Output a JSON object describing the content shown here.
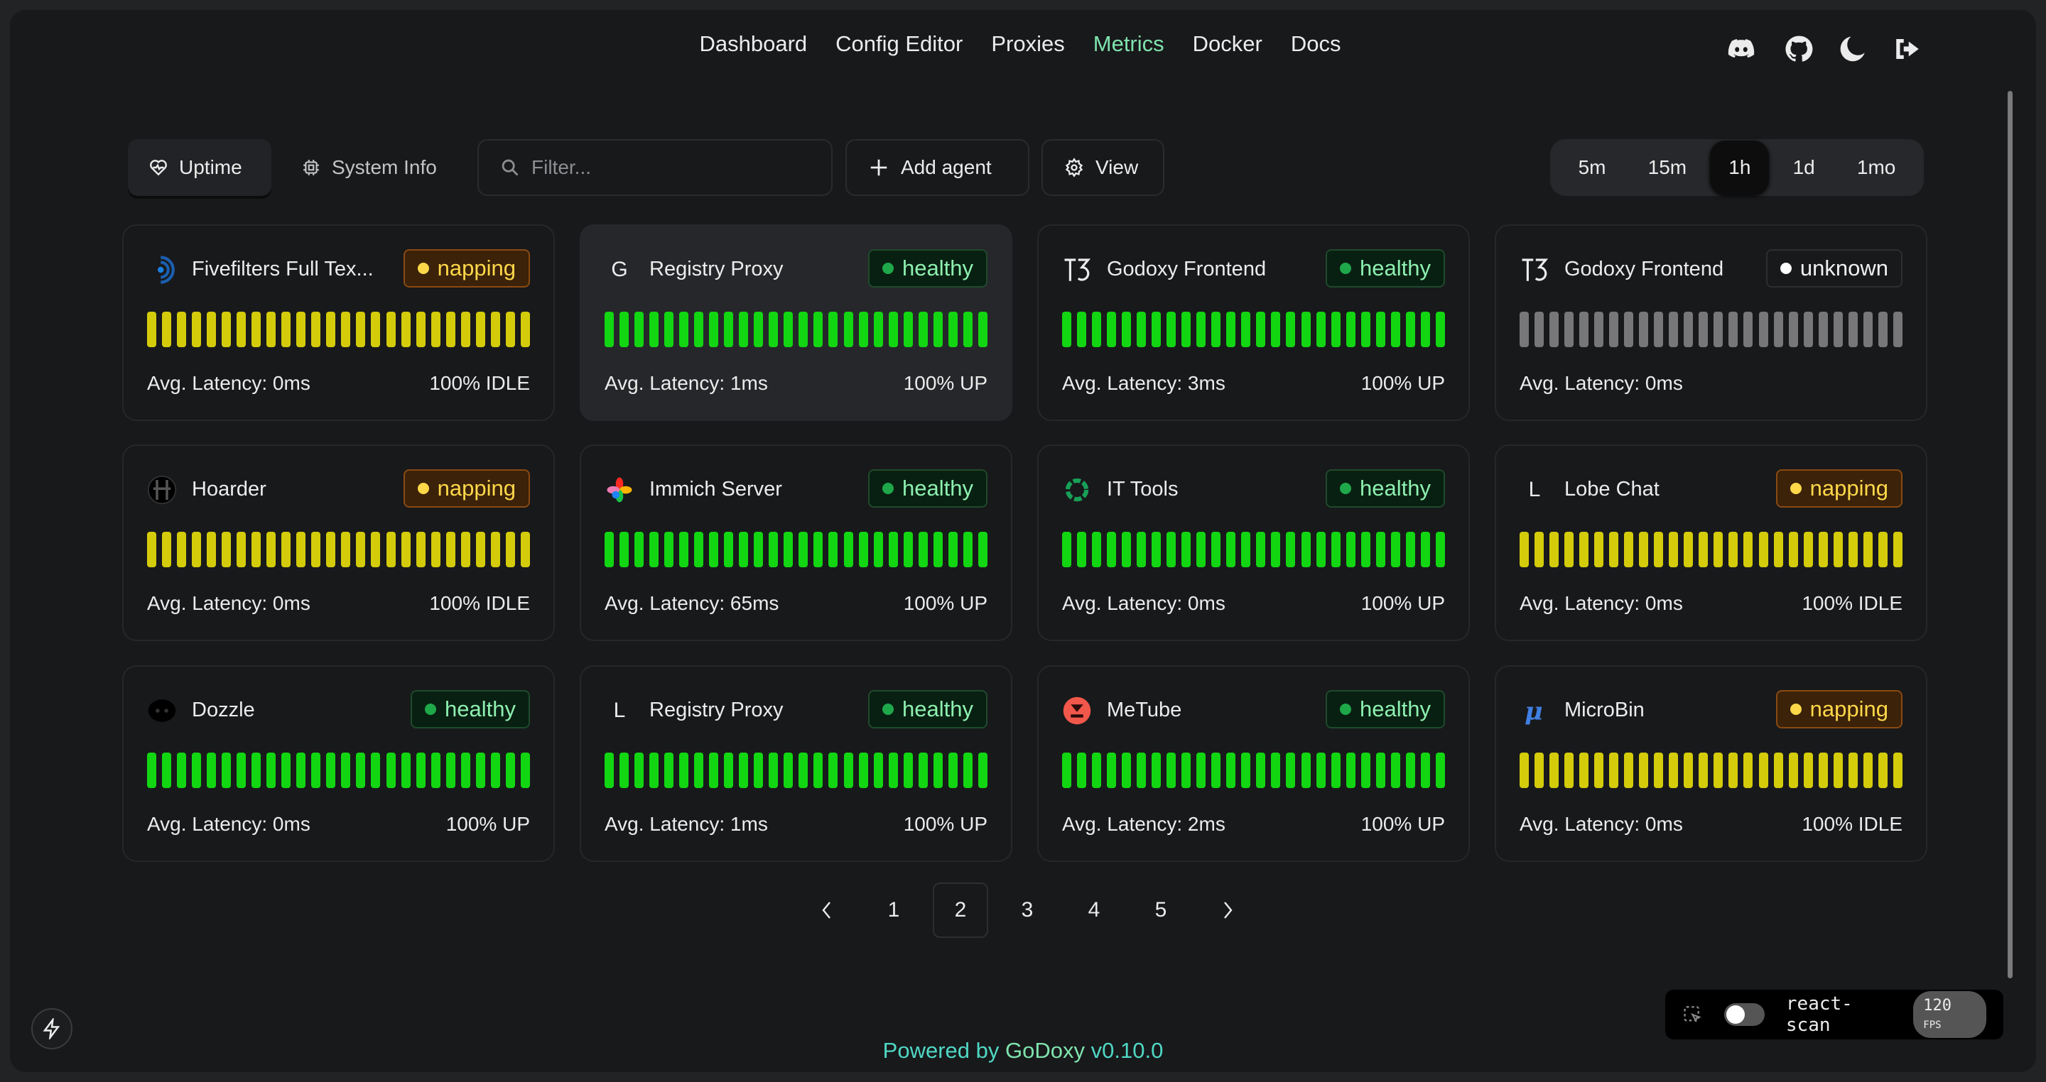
{
  "nav": {
    "items": [
      "Dashboard",
      "Config Editor",
      "Proxies",
      "Metrics",
      "Docker",
      "Docs"
    ],
    "active": "Metrics",
    "icons": [
      "discord-icon",
      "github-icon",
      "moon-icon",
      "logout-icon"
    ]
  },
  "toolbar": {
    "tab_uptime": "Uptime",
    "tab_system_info": "System Info",
    "filter_placeholder": "Filter...",
    "add_agent": "Add agent",
    "view": "View",
    "ranges": [
      "5m",
      "15m",
      "1h",
      "1d",
      "1mo"
    ],
    "selected_range": "1h"
  },
  "status_colors": {
    "napping": {
      "bar": "#d4cc0a",
      "badge_bg": "#3b2208",
      "badge_border": "#8a4a12",
      "text": "#ffd84a",
      "dot": "#ffd84a"
    },
    "healthy": {
      "bar": "#12d612",
      "badge_bg": "#082012",
      "badge_border": "#1f4a2c",
      "text": "#8ef0b0",
      "dot": "#1fa84a"
    },
    "unknown": {
      "bar": "#77777a",
      "badge_bg": "#18191b",
      "badge_border": "#2d2e31",
      "text": "#f0f0f0",
      "dot": "#ffffff"
    }
  },
  "cards": [
    {
      "name": "Fivefilters Full Tex...",
      "icon": "fivefilters-icon",
      "status": "napping",
      "latency": "Avg. Latency: 0ms",
      "uptime": "100% IDLE"
    },
    {
      "name": "Registry Proxy",
      "icon": "letter-icon",
      "letter": "G",
      "status": "healthy",
      "latency": "Avg. Latency: 1ms",
      "uptime": "100% UP"
    },
    {
      "name": "Godoxy Frontend",
      "icon": "t3-icon",
      "status": "healthy",
      "latency": "Avg. Latency: 3ms",
      "uptime": "100% UP"
    },
    {
      "name": "Godoxy Frontend",
      "icon": "t3-icon",
      "status": "unknown",
      "latency": "Avg. Latency: 0ms",
      "uptime": ""
    },
    {
      "name": "Hoarder",
      "icon": "hoarder-icon",
      "status": "napping",
      "latency": "Avg. Latency: 0ms",
      "uptime": "100% IDLE"
    },
    {
      "name": "Immich Server",
      "icon": "immich-icon",
      "status": "healthy",
      "latency": "Avg. Latency: 65ms",
      "uptime": "100% UP"
    },
    {
      "name": "IT Tools",
      "icon": "it-tools-icon",
      "status": "healthy",
      "latency": "Avg. Latency: 0ms",
      "uptime": "100% UP"
    },
    {
      "name": "Lobe Chat",
      "icon": "letter-icon",
      "letter": "L",
      "status": "napping",
      "latency": "Avg. Latency: 0ms",
      "uptime": "100% IDLE"
    },
    {
      "name": "Dozzle",
      "icon": "dozzle-icon",
      "status": "healthy",
      "latency": "Avg. Latency: 0ms",
      "uptime": "100% UP"
    },
    {
      "name": "Registry Proxy",
      "icon": "letter-icon",
      "letter": "L",
      "status": "healthy",
      "latency": "Avg. Latency: 1ms",
      "uptime": "100% UP"
    },
    {
      "name": "MeTube",
      "icon": "metube-icon",
      "status": "healthy",
      "latency": "Avg. Latency: 2ms",
      "uptime": "100% UP"
    },
    {
      "name": "MicroBin",
      "icon": "microbin-icon",
      "status": "napping",
      "latency": "Avg. Latency: 0ms",
      "uptime": "100% IDLE"
    }
  ],
  "pagination": {
    "pages": [
      "1",
      "2",
      "3",
      "4",
      "5"
    ],
    "current": "2"
  },
  "footer": {
    "prefix": "Powered by",
    "brand": "GoDoxy",
    "version": "v0.10.0"
  },
  "react_scan": {
    "label": "react-scan",
    "fps": "120",
    "fps_unit": "FPS",
    "enabled": false
  }
}
